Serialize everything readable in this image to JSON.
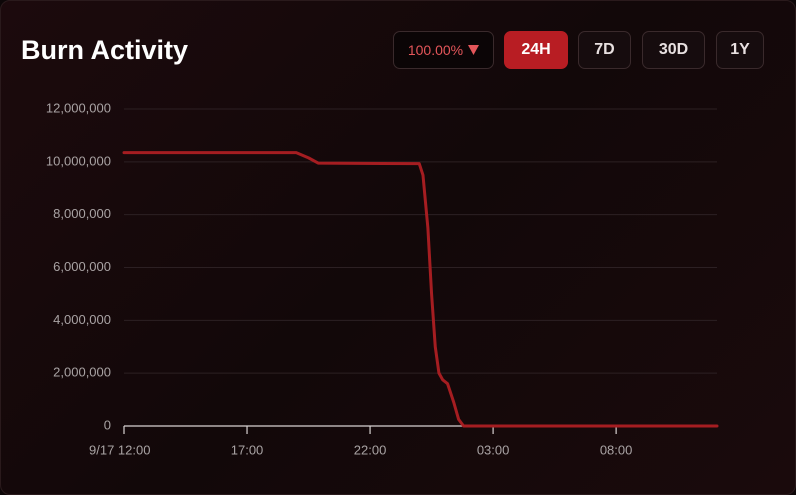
{
  "chart_data": {
    "type": "line",
    "title": "Burn Activity",
    "change_badge": "100.00%",
    "range_buttons": [
      "24H",
      "7D",
      "30D",
      "1Y"
    ],
    "active_range": "24H",
    "x": [
      12,
      19,
      19.5,
      19.9,
      24,
      24.15,
      24.35,
      24.5,
      24.65,
      24.8,
      24.95,
      25.15,
      25.4,
      25.6,
      25.8,
      36.1
    ],
    "series": [
      {
        "name": "Burn",
        "color": "#a51d21",
        "values": [
          10350000,
          10350000,
          10150000,
          9950000,
          9930000,
          9500000,
          7500000,
          5000000,
          3000000,
          2000000,
          1750000,
          1600000,
          900000,
          250000,
          0,
          0
        ]
      }
    ],
    "xlim": [
      12,
      36.1
    ],
    "xticks": [
      {
        "value": 12,
        "label": "9/17 12:00"
      },
      {
        "value": 17,
        "label": "17:00"
      },
      {
        "value": 22,
        "label": "22:00"
      },
      {
        "value": 27,
        "label": "03:00"
      },
      {
        "value": 32,
        "label": "08:00"
      }
    ],
    "ylim": [
      0,
      12000000
    ],
    "yticks": [
      0,
      {
        "value": 2000000,
        "label": "2,000,000"
      },
      {
        "value": 4000000,
        "label": "4,000,000"
      },
      {
        "value": 6000000,
        "label": "6,000,000"
      },
      {
        "value": 8000000,
        "label": "8,000,000"
      },
      {
        "value": 10000000,
        "label": "10,000,000"
      },
      {
        "value": 12000000,
        "label": "12,000,000"
      }
    ],
    "grid": true
  }
}
